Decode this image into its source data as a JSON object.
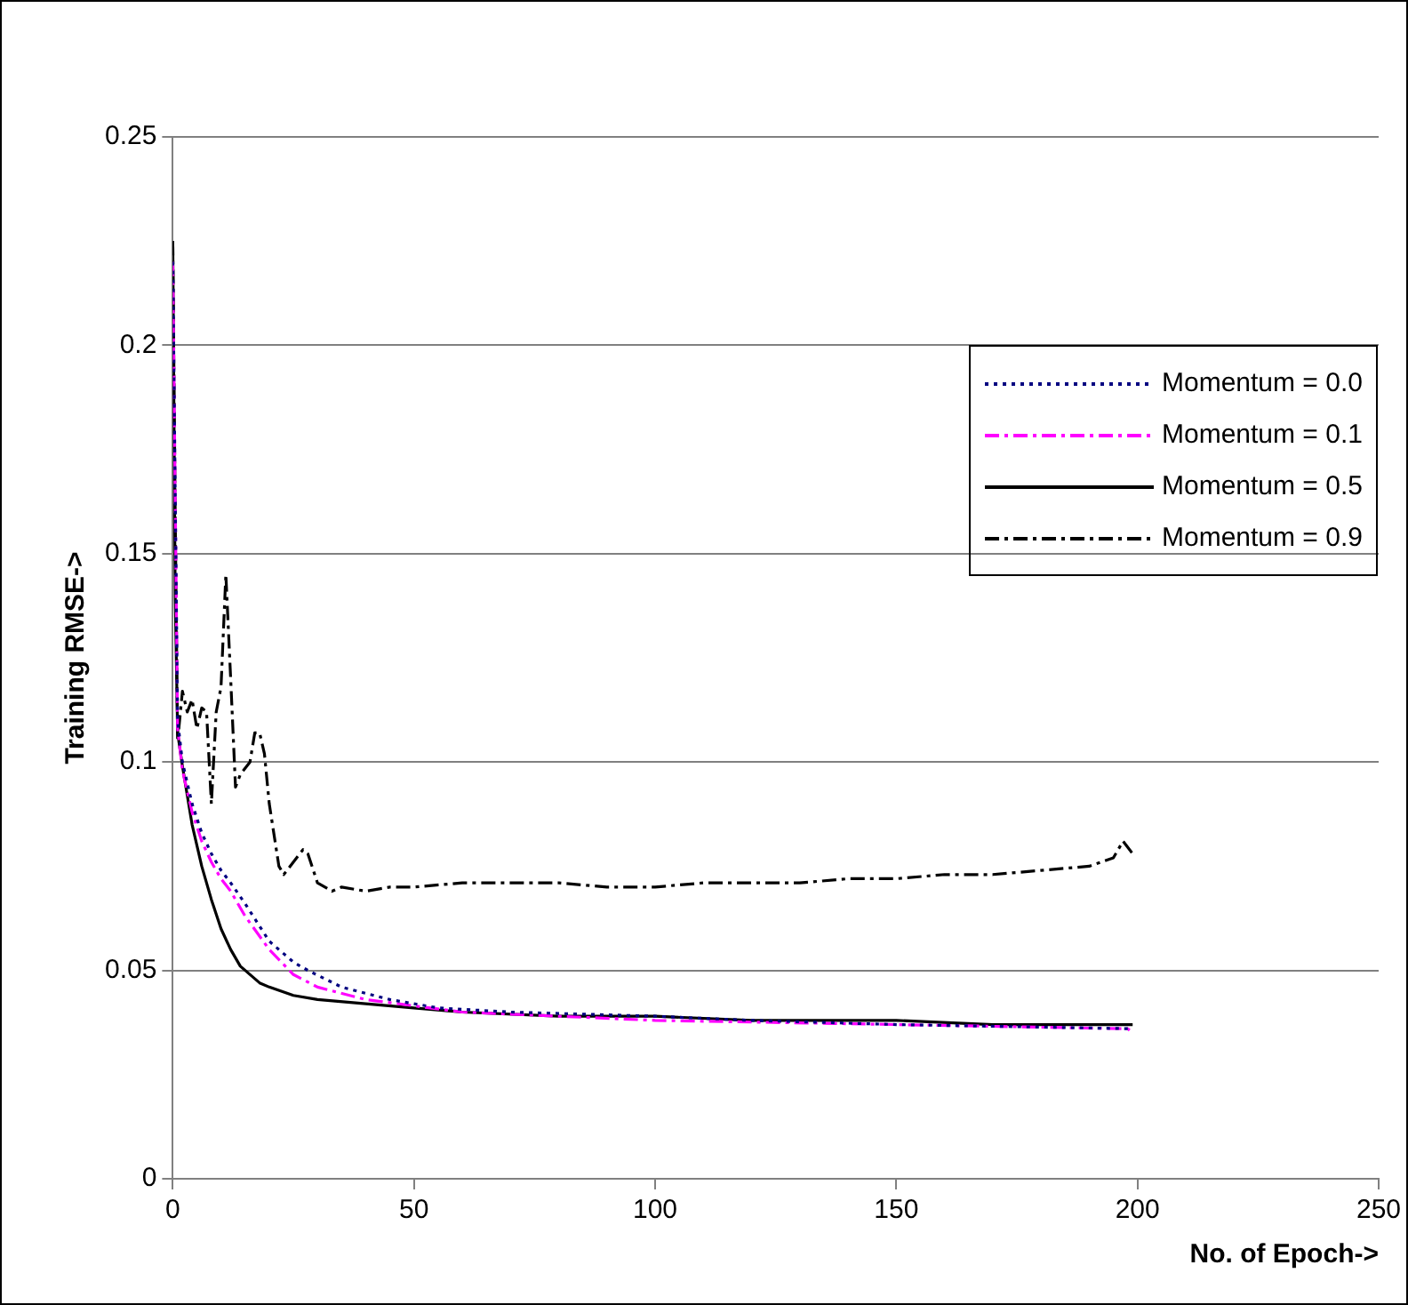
{
  "chart_data": {
    "type": "line",
    "xlabel": "No. of Epoch->",
    "ylabel": "Training RMSE->",
    "xlim": [
      0,
      250
    ],
    "xticks": [
      0,
      50,
      100,
      150,
      200,
      250
    ],
    "ylim": [
      0,
      0.25
    ],
    "yticks": [
      0,
      0.05,
      0.1,
      0.15,
      0.2,
      0.25
    ],
    "grid": "y",
    "legend": "right",
    "marker": "none",
    "series": [
      {
        "name": "Momentum = 0.0",
        "color": "#000080",
        "line_style": "dotted",
        "x": [
          0,
          1,
          2,
          4,
          6,
          8,
          10,
          12,
          15,
          20,
          25,
          28,
          35,
          45,
          55,
          70,
          100,
          120,
          150,
          199
        ],
        "values": [
          0.22,
          0.11,
          0.1,
          0.09,
          0.083,
          0.078,
          0.074,
          0.071,
          0.066,
          0.057,
          0.052,
          0.05,
          0.046,
          0.043,
          0.041,
          0.04,
          0.039,
          0.038,
          0.037,
          0.036
        ]
      },
      {
        "name": "Momentum = 0.1",
        "color": "#ff00ff",
        "line_style": "dashed",
        "x": [
          0,
          1,
          2,
          4,
          6,
          8,
          10,
          12,
          15,
          20,
          25,
          30,
          40,
          60,
          100,
          150,
          198,
          199
        ],
        "values": [
          0.22,
          0.108,
          0.098,
          0.088,
          0.081,
          0.076,
          0.072,
          0.069,
          0.063,
          0.055,
          0.049,
          0.046,
          0.043,
          0.04,
          0.038,
          0.037,
          0.036,
          0.035
        ]
      },
      {
        "name": "Momentum = 0.5",
        "color": "#000000",
        "line_style": "solid",
        "x": [
          0,
          0.5,
          1,
          2,
          4,
          6,
          8,
          10,
          12,
          14,
          18,
          20,
          25,
          30,
          40,
          50,
          60,
          80,
          100,
          120,
          150,
          170,
          199
        ],
        "values": [
          0.225,
          0.14,
          0.107,
          0.099,
          0.085,
          0.075,
          0.067,
          0.06,
          0.055,
          0.051,
          0.047,
          0.046,
          0.044,
          0.043,
          0.042,
          0.041,
          0.04,
          0.039,
          0.039,
          0.038,
          0.038,
          0.037,
          0.037
        ]
      },
      {
        "name": "Momentum = 0.9",
        "color": "#000000",
        "line_style": "dashed",
        "x": [
          0,
          0.5,
          1,
          2,
          3,
          4,
          5,
          6,
          7,
          8,
          9,
          10,
          11,
          12,
          13,
          14,
          16,
          17,
          18,
          19,
          20,
          22,
          23,
          25,
          27,
          28,
          30,
          33,
          35,
          40,
          45,
          50,
          60,
          70,
          80,
          90,
          100,
          110,
          120,
          130,
          140,
          150,
          160,
          170,
          180,
          190,
          195,
          197,
          199
        ],
        "values": [
          0.225,
          0.16,
          0.105,
          0.117,
          0.112,
          0.115,
          0.108,
          0.113,
          0.112,
          0.09,
          0.112,
          0.118,
          0.145,
          0.12,
          0.094,
          0.097,
          0.1,
          0.107,
          0.107,
          0.102,
          0.09,
          0.075,
          0.073,
          0.076,
          0.079,
          0.078,
          0.071,
          0.069,
          0.07,
          0.069,
          0.07,
          0.07,
          0.071,
          0.071,
          0.071,
          0.07,
          0.07,
          0.071,
          0.071,
          0.071,
          0.072,
          0.072,
          0.073,
          0.073,
          0.074,
          0.075,
          0.077,
          0.081,
          0.078
        ]
      }
    ]
  }
}
